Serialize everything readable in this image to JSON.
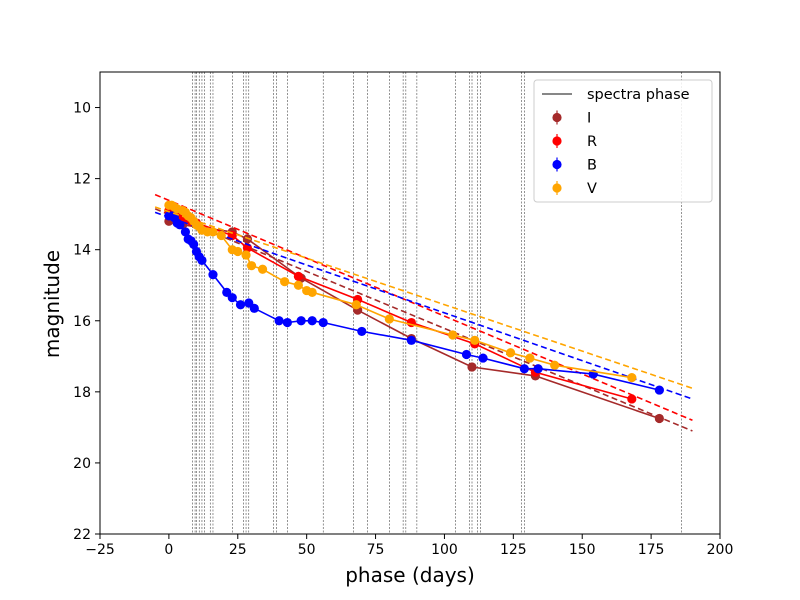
{
  "chart_data": {
    "type": "scatter",
    "title": "",
    "xlabel": "phase (days)",
    "ylabel": "magnitude",
    "xlim": [
      -25,
      200
    ],
    "ylim": [
      22,
      9
    ],
    "y_inverted": true,
    "grid": false,
    "legend_position": "top-right",
    "xticks": [
      -25,
      0,
      25,
      50,
      75,
      100,
      125,
      150,
      175,
      200
    ],
    "yticks": [
      10,
      12,
      14,
      16,
      18,
      20,
      22
    ],
    "spectra_phase_label": "spectra phase",
    "spectra_phases": [
      8.5,
      9.5,
      10,
      11,
      12,
      13,
      15,
      16,
      23,
      27,
      28,
      29,
      38,
      39,
      43,
      56,
      67,
      72,
      80,
      85,
      86,
      90,
      104,
      109,
      110,
      112,
      113,
      128,
      129,
      186
    ],
    "series": [
      {
        "name": "I",
        "color": "#a52a2a",
        "x": [
          0,
          1,
          2,
          4,
          5,
          23,
          28.5,
          48,
          68.5,
          88,
          110,
          133,
          178
        ],
        "y": [
          13.2,
          13.1,
          13.15,
          13.25,
          13.3,
          13.5,
          13.7,
          14.8,
          15.7,
          16.5,
          17.3,
          17.55,
          18.75
        ],
        "fit_start": [
          -5,
          12.85
        ],
        "fit_end": [
          190,
          19.1
        ]
      },
      {
        "name": "R",
        "color": "#ff0000",
        "x": [
          0,
          1,
          2,
          3,
          4,
          6,
          8,
          10,
          23,
          28.5,
          47,
          68.5,
          88,
          111,
          133,
          168
        ],
        "y": [
          12.9,
          12.85,
          12.9,
          13.0,
          13.1,
          13.15,
          13.2,
          13.25,
          13.6,
          13.95,
          14.75,
          15.4,
          16.05,
          16.65,
          17.45,
          18.2
        ],
        "fit_start": [
          -5,
          12.45
        ],
        "fit_end": [
          190,
          18.8
        ]
      },
      {
        "name": "B",
        "color": "#0000ff",
        "x": [
          0,
          1,
          2,
          3,
          4,
          6,
          7,
          8,
          9,
          10,
          11,
          12,
          16,
          21,
          23,
          26,
          29,
          31,
          40,
          43,
          48,
          52,
          56,
          70,
          88,
          108,
          114,
          129,
          134,
          154,
          178
        ],
        "y": [
          13.05,
          13.05,
          13.1,
          13.25,
          13.3,
          13.5,
          13.7,
          13.75,
          13.85,
          14.05,
          14.2,
          14.3,
          14.7,
          15.2,
          15.35,
          15.55,
          15.5,
          15.65,
          16.0,
          16.05,
          16.0,
          16.0,
          16.05,
          16.3,
          16.55,
          16.95,
          17.05,
          17.35,
          17.35,
          17.5,
          17.95
        ],
        "fit_start": [
          -5,
          12.95
        ],
        "fit_end": [
          190,
          18.2
        ]
      },
      {
        "name": "V",
        "color": "#ffa500",
        "x": [
          0,
          1,
          2,
          3,
          5,
          6,
          7,
          8,
          9,
          10,
          11,
          12,
          14,
          16,
          19,
          23,
          25,
          28,
          30,
          34,
          42,
          47,
          50,
          52,
          68,
          80,
          103,
          111,
          124,
          131,
          140,
          168
        ],
        "y": [
          12.75,
          12.75,
          12.8,
          12.85,
          12.9,
          12.95,
          13.05,
          13.1,
          13.2,
          13.3,
          13.35,
          13.45,
          13.5,
          13.5,
          13.6,
          14.0,
          14.05,
          14.15,
          14.45,
          14.55,
          14.9,
          15.0,
          15.15,
          15.2,
          15.55,
          15.95,
          16.4,
          16.55,
          16.9,
          17.05,
          17.25,
          17.6
        ],
        "fit_start": [
          -5,
          12.8
        ],
        "fit_end": [
          190,
          17.9
        ]
      }
    ]
  }
}
